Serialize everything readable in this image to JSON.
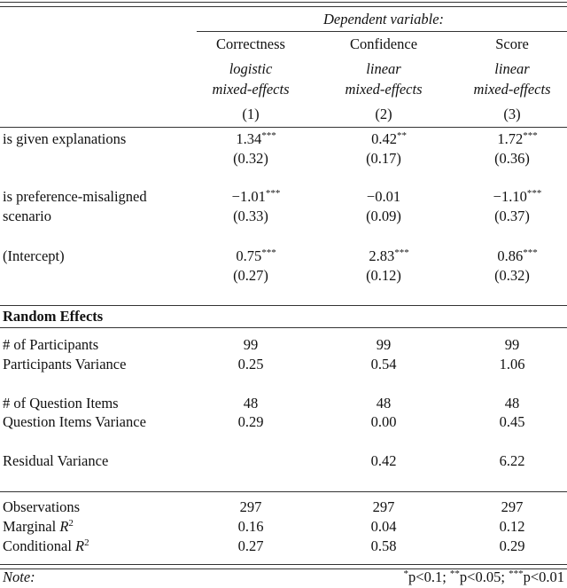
{
  "header": {
    "dependent_variable": "Dependent variable:",
    "columns": [
      {
        "name": "Correctness",
        "model_line1": "logistic",
        "model_line2": "mixed-effects",
        "number": "(1)"
      },
      {
        "name": "Confidence",
        "model_line1": "linear",
        "model_line2": "mixed-effects",
        "number": "(2)"
      },
      {
        "name": "Score",
        "model_line1": "linear",
        "model_line2": "mixed-effects",
        "number": "(3)"
      }
    ]
  },
  "coefficients": [
    {
      "label": [
        "is given explanations"
      ],
      "values": [
        {
          "v": "1.34",
          "s": "***"
        },
        {
          "v": "0.42",
          "s": "**"
        },
        {
          "v": "1.72",
          "s": "***"
        }
      ],
      "se": [
        "(0.32)",
        "(0.17)",
        "(0.36)"
      ]
    },
    {
      "label": [
        "is preference-misaligned",
        "scenario"
      ],
      "values": [
        {
          "v": "−1.01",
          "s": "***"
        },
        {
          "v": "−0.01",
          "s": ""
        },
        {
          "v": "−1.10",
          "s": "***"
        }
      ],
      "se": [
        "(0.33)",
        "(0.09)",
        "(0.37)"
      ]
    },
    {
      "label": [
        "(Intercept)"
      ],
      "values": [
        {
          "v": "0.75",
          "s": "***"
        },
        {
          "v": "2.83",
          "s": "***"
        },
        {
          "v": "0.86",
          "s": "***"
        }
      ],
      "se": [
        "(0.27)",
        "(0.12)",
        "(0.32)"
      ]
    }
  ],
  "random_effects": {
    "title": "Random Effects",
    "rows": [
      {
        "label": "# of Participants",
        "values": [
          "99",
          "99",
          "99"
        ]
      },
      {
        "label": "Participants Variance",
        "values": [
          "0.25",
          "0.54",
          "1.06"
        ]
      },
      {
        "label": "# of Question Items",
        "values": [
          "48",
          "48",
          "48"
        ]
      },
      {
        "label": "Question Items Variance",
        "values": [
          "0.29",
          "0.00",
          "0.45"
        ]
      },
      {
        "label": "Residual Variance",
        "values": [
          "",
          "0.42",
          "6.22"
        ]
      }
    ]
  },
  "stats": [
    {
      "label": "Observations",
      "sup": "",
      "values": [
        "297",
        "297",
        "297"
      ]
    },
    {
      "label": "Marginal R",
      "sup": "2",
      "values": [
        "0.16",
        "0.04",
        "0.12"
      ]
    },
    {
      "label": "Conditional R",
      "sup": "2",
      "values": [
        "0.27",
        "0.58",
        "0.29"
      ]
    }
  ],
  "note": {
    "label": "Note:",
    "sig": [
      {
        "s": "*",
        "t": "p<0.1; "
      },
      {
        "s": "**",
        "t": "p<0.05; "
      },
      {
        "s": "***",
        "t": "p<0.01"
      }
    ]
  }
}
